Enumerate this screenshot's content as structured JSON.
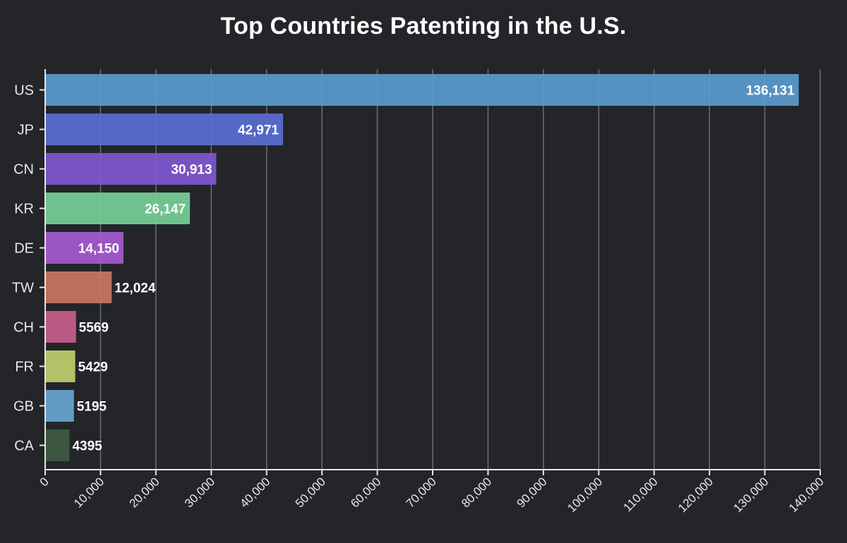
{
  "chart_data": {
    "type": "bar",
    "orientation": "horizontal",
    "title": "Top Countries Patenting in the U.S.",
    "xlabel": "",
    "ylabel": "",
    "xlim": [
      0,
      140000
    ],
    "x_ticks": [
      0,
      10000,
      20000,
      30000,
      40000,
      50000,
      60000,
      70000,
      80000,
      90000,
      100000,
      110000,
      120000,
      130000,
      140000
    ],
    "x_tick_labels": [
      "0",
      "10,000",
      "20,000",
      "30,000",
      "40,000",
      "50,000",
      "60,000",
      "70,000",
      "80,000",
      "90,000",
      "100,000",
      "110,000",
      "120,000",
      "130,000",
      "140,000"
    ],
    "grid": true,
    "categories": [
      "US",
      "JP",
      "CN",
      "KR",
      "DE",
      "TW",
      "CH",
      "FR",
      "GB",
      "CA"
    ],
    "values": [
      136131,
      42971,
      30913,
      26147,
      14150,
      12024,
      5569,
      5429,
      5195,
      4395
    ],
    "value_labels": [
      "136,131",
      "42,971",
      "30,913",
      "26,147",
      "14,150",
      "12,024",
      "5569",
      "5429",
      "5195",
      "4395"
    ],
    "colors": [
      "#5b9bce",
      "#5a6ed3",
      "#7f57d0",
      "#76cf96",
      "#a65ad1",
      "#c9775f",
      "#c95e8c",
      "#bfcf6b",
      "#68a6d2",
      "#3f5a41"
    ]
  }
}
